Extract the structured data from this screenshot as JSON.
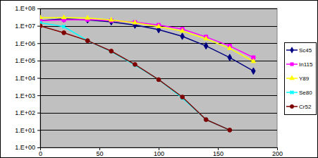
{
  "chart_data": {
    "type": "line",
    "log": "y",
    "grid": true,
    "legend": "right",
    "x": [
      0,
      20,
      40,
      60,
      80,
      100,
      120,
      140,
      160,
      180
    ],
    "xlim": [
      0,
      200
    ],
    "xticks": [
      0,
      50,
      100,
      150,
      200
    ],
    "ylim": [
      1,
      100000000
    ],
    "yticks": [
      {
        "value": 1,
        "label": "1.E+00"
      },
      {
        "value": 10,
        "label": "1.E+01"
      },
      {
        "value": 100,
        "label": "1.E+02"
      },
      {
        "value": 1000,
        "label": "1.E+03"
      },
      {
        "value": 10000,
        "label": "1.E+04"
      },
      {
        "value": 100000,
        "label": "1.E+05"
      },
      {
        "value": 1000000,
        "label": "1.E+06"
      },
      {
        "value": 10000000,
        "label": "1.E+07"
      },
      {
        "value": 100000000,
        "label": "1.E+08"
      }
    ],
    "series": [
      {
        "name": "Sc45",
        "color": "#000080",
        "marker": "diamond",
        "line_style": "solid",
        "values": [
          20000000,
          25000000,
          22000000,
          17000000,
          11000000,
          6000000,
          2500000,
          700000,
          150000,
          25000
        ]
      },
      {
        "name": "In115",
        "color": "#ff00ff",
        "marker": "square",
        "line_style": "solid",
        "values": [
          20000000,
          22000000,
          23000000,
          20000000,
          16000000,
          11000000,
          6500000,
          2300000,
          700000,
          150000
        ]
      },
      {
        "name": "Y89",
        "color": "#ffff00",
        "marker": "triangle",
        "line_style": "solid",
        "values": [
          30000000,
          30000000,
          28000000,
          22000000,
          15000000,
          9000000,
          5000000,
          1800000,
          500000,
          90000
        ]
      },
      {
        "name": "Se80",
        "color": "#00ffff",
        "marker": "x",
        "line_style": "solid",
        "values": [
          15000000,
          9000000,
          1400000,
          330000,
          55000,
          8000,
          700,
          40,
          10,
          null
        ]
      },
      {
        "name": "Cr52",
        "color": "#800000",
        "marker": "circle",
        "line_style": "solid",
        "values": [
          10000000,
          4000000,
          1400000,
          350000,
          60000,
          8000,
          800,
          40,
          10,
          null
        ]
      }
    ]
  }
}
